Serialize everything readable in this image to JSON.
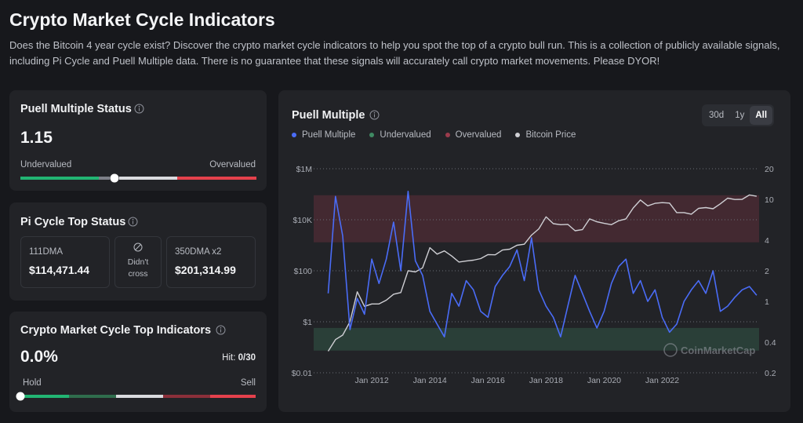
{
  "header": {
    "title": "Crypto Market Cycle Indicators",
    "description": "Does the Bitcoin 4 year cycle exist? Discover the crypto market cycle indicators to help you spot the top of a crypto bull run. This is a collection of publicly available signals, including Pi Cycle and Puell Multiple data. There is no guarantee that these signals will accurately call crypto market movements. Please DYOR!"
  },
  "puell_status": {
    "title": "Puell Multiple Status",
    "value": "1.15",
    "low_label": "Undervalued",
    "high_label": "Overvalued"
  },
  "pi_cycle": {
    "title": "Pi Cycle Top Status",
    "left": {
      "label": "111DMA",
      "value": "$114,471.44"
    },
    "middle": {
      "line1": "Didn't",
      "line2": "cross"
    },
    "right": {
      "label": "350DMA x2",
      "value": "$201,314.99"
    }
  },
  "top_indicators": {
    "title": "Crypto Market Cycle Top Indicators",
    "value": "0.0%",
    "hit_label": "Hit:",
    "hit_value": "0/30",
    "low_label": "Hold",
    "high_label": "Sell"
  },
  "range_buttons": [
    "30d",
    "1y",
    "All"
  ],
  "watermark": "CoinMarketCap",
  "chart_data": {
    "type": "line",
    "title": "Puell Multiple",
    "log_scale": true,
    "grid": true,
    "x": [
      "2010-07",
      "2010-10",
      "2011-01",
      "2011-04",
      "2011-07",
      "2011-10",
      "2012-01",
      "2012-04",
      "2012-07",
      "2012-10",
      "2013-01",
      "2013-04",
      "2013-07",
      "2013-10",
      "2014-01",
      "2014-04",
      "2014-07",
      "2014-10",
      "2015-01",
      "2015-04",
      "2015-07",
      "2015-10",
      "2016-01",
      "2016-04",
      "2016-07",
      "2016-10",
      "2017-01",
      "2017-04",
      "2017-07",
      "2017-10",
      "2018-01",
      "2018-04",
      "2018-07",
      "2018-10",
      "2019-01",
      "2019-04",
      "2019-07",
      "2019-10",
      "2020-01",
      "2020-04",
      "2020-07",
      "2020-10",
      "2021-01",
      "2021-04",
      "2021-07",
      "2021-10",
      "2022-01",
      "2022-04",
      "2022-07",
      "2022-10",
      "2023-01",
      "2023-04",
      "2023-07",
      "2023-10",
      "2024-01",
      "2024-04",
      "2024-07",
      "2024-10",
      "2025-01",
      "2025-04"
    ],
    "xlim": [
      "2010-01",
      "2025-05"
    ],
    "xticks": [
      {
        "value": "2012-01",
        "label": "Jan 2012"
      },
      {
        "value": "2014-01",
        "label": "Jan 2014"
      },
      {
        "value": "2016-01",
        "label": "Jan 2016"
      },
      {
        "value": "2018-01",
        "label": "Jan 2018"
      },
      {
        "value": "2020-01",
        "label": "Jan 2020"
      },
      {
        "value": "2022-01",
        "label": "Jan 2022"
      }
    ],
    "ylim": [
      0.01,
      1000000
    ],
    "yticks": [
      {
        "value": 0.01,
        "label": "$0.01"
      },
      {
        "value": 1,
        "label": "$1"
      },
      {
        "value": 100,
        "label": "$100"
      },
      {
        "value": 10000,
        "label": "$10K"
      },
      {
        "value": 1000000,
        "label": "$1M"
      }
    ],
    "y2lim": [
      0.2,
      20
    ],
    "y2ticks": [
      0.2,
      0.4,
      1,
      2,
      4,
      10,
      20
    ],
    "bands": [
      {
        "name": "Undervalued",
        "color": "#3f8a63",
        "range": [
          0.33,
          0.55
        ]
      },
      {
        "name": "Overvalued",
        "color": "#9b3b4c",
        "range": [
          3.8,
          11
        ]
      }
    ],
    "series": [
      {
        "name": "Puell Multiple",
        "color": "#4a6cf7",
        "axis": "y2",
        "values": [
          1.2,
          10.7,
          4.4,
          0.53,
          1.07,
          0.75,
          2.6,
          1.5,
          2.6,
          6,
          2.0,
          12,
          2.5,
          1.8,
          0.8,
          0.6,
          0.45,
          1.2,
          0.9,
          1.6,
          1.3,
          0.8,
          0.7,
          1.4,
          1.8,
          2.2,
          3.2,
          1.6,
          4.2,
          1.3,
          0.9,
          0.7,
          0.45,
          0.9,
          1.8,
          1.2,
          0.8,
          0.55,
          0.8,
          1.5,
          2.2,
          2.6,
          1.2,
          1.6,
          1.0,
          1.3,
          0.7,
          0.5,
          0.6,
          1.0,
          1.3,
          1.6,
          1.2,
          2.0,
          0.8,
          0.9,
          1.1,
          1.3,
          1.4,
          1.15
        ]
      },
      {
        "name": "Bitcoin Price",
        "color": "#cfcfd4",
        "values": [
          0.07,
          0.2,
          0.3,
          1,
          15,
          4,
          5,
          5,
          7,
          12,
          14,
          100,
          90,
          130,
          800,
          450,
          600,
          380,
          220,
          240,
          260,
          300,
          430,
          420,
          650,
          700,
          1000,
          1100,
          2500,
          4400,
          13000,
          7000,
          6400,
          6600,
          3700,
          4100,
          10800,
          8300,
          7200,
          6400,
          9100,
          10800,
          29000,
          59000,
          35000,
          44000,
          47000,
          45000,
          19000,
          19000,
          16500,
          28000,
          30000,
          27000,
          42000,
          70000,
          62000,
          63000,
          94000,
          83000
        ]
      }
    ]
  }
}
